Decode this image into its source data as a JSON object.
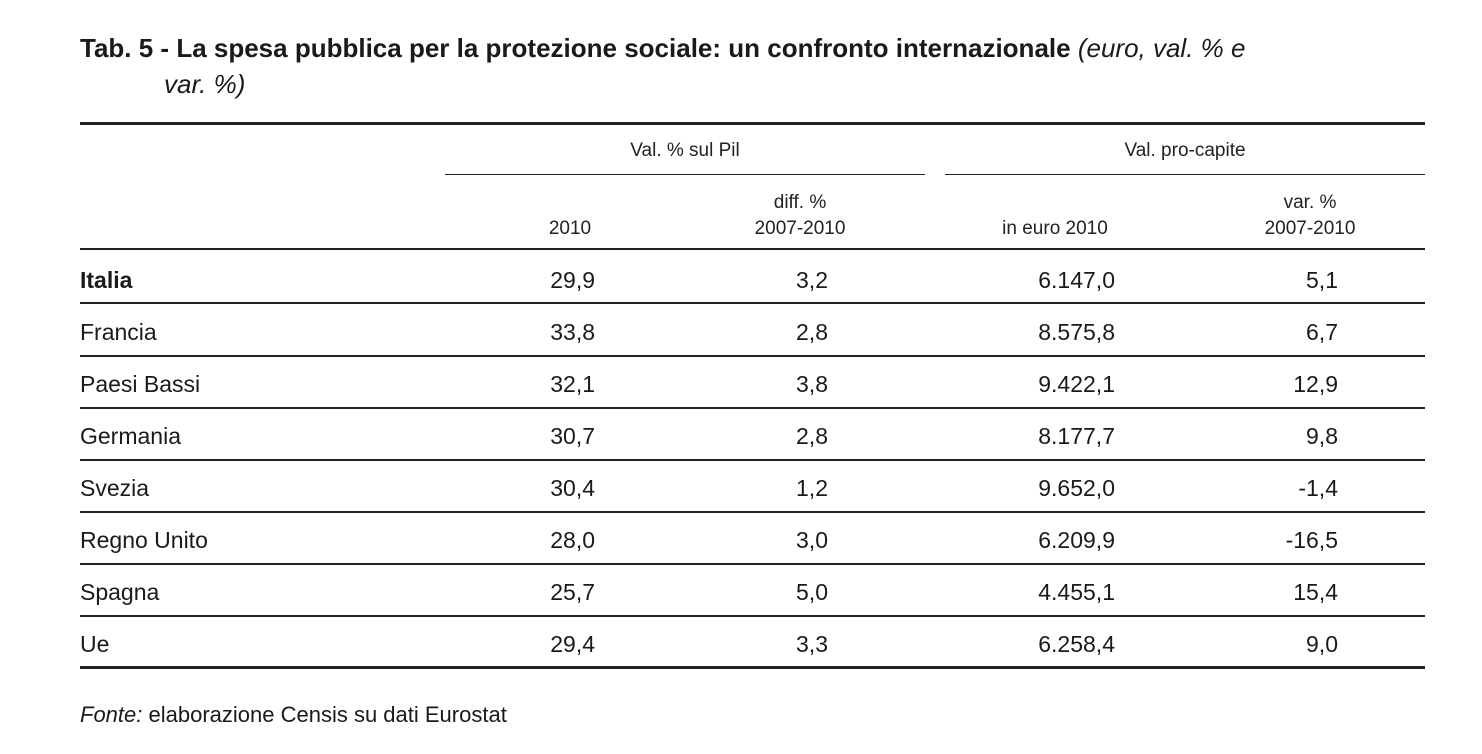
{
  "caption": {
    "prefix": "Tab. 5 - ",
    "main": "La spesa pubblica per la protezione sociale: un confronto internazionale",
    "note_line1": "(euro, val. % e",
    "note_line2": "var. %)"
  },
  "table": {
    "group_headers": [
      "Val. % sul Pil",
      "Val. pro-capite"
    ],
    "columns": [
      {
        "line1": "",
        "line2": "2010"
      },
      {
        "line1": "diff. %",
        "line2": "2007-2010"
      },
      {
        "line1": "",
        "line2": "in euro 2010"
      },
      {
        "line1": "var. %",
        "line2": "2007-2010"
      }
    ],
    "rows": [
      {
        "country": "Italia",
        "v1": "29,9",
        "v2": "3,2",
        "v3": "6.147,0",
        "v4": "5,1"
      },
      {
        "country": "Francia",
        "v1": "33,8",
        "v2": "2,8",
        "v3": "8.575,8",
        "v4": "6,7"
      },
      {
        "country": "Paesi Bassi",
        "v1": "32,1",
        "v2": "3,8",
        "v3": "9.422,1",
        "v4": "12,9"
      },
      {
        "country": "Germania",
        "v1": "30,7",
        "v2": "2,8",
        "v3": "8.177,7",
        "v4": "9,8"
      },
      {
        "country": "Svezia",
        "v1": "30,4",
        "v2": "1,2",
        "v3": "9.652,0",
        "v4": "-1,4"
      },
      {
        "country": "Regno Unito",
        "v1": "28,0",
        "v2": "3,0",
        "v3": "6.209,9",
        "v4": "-16,5"
      },
      {
        "country": "Spagna",
        "v1": "25,7",
        "v2": "5,0",
        "v3": "4.455,1",
        "v4": "15,4"
      },
      {
        "country": "Ue",
        "v1": "29,4",
        "v2": "3,3",
        "v3": "6.258,4",
        "v4": "9,0"
      }
    ]
  },
  "source": {
    "label": "Fonte:",
    "text": " elaborazione Censis su dati Eurostat"
  }
}
